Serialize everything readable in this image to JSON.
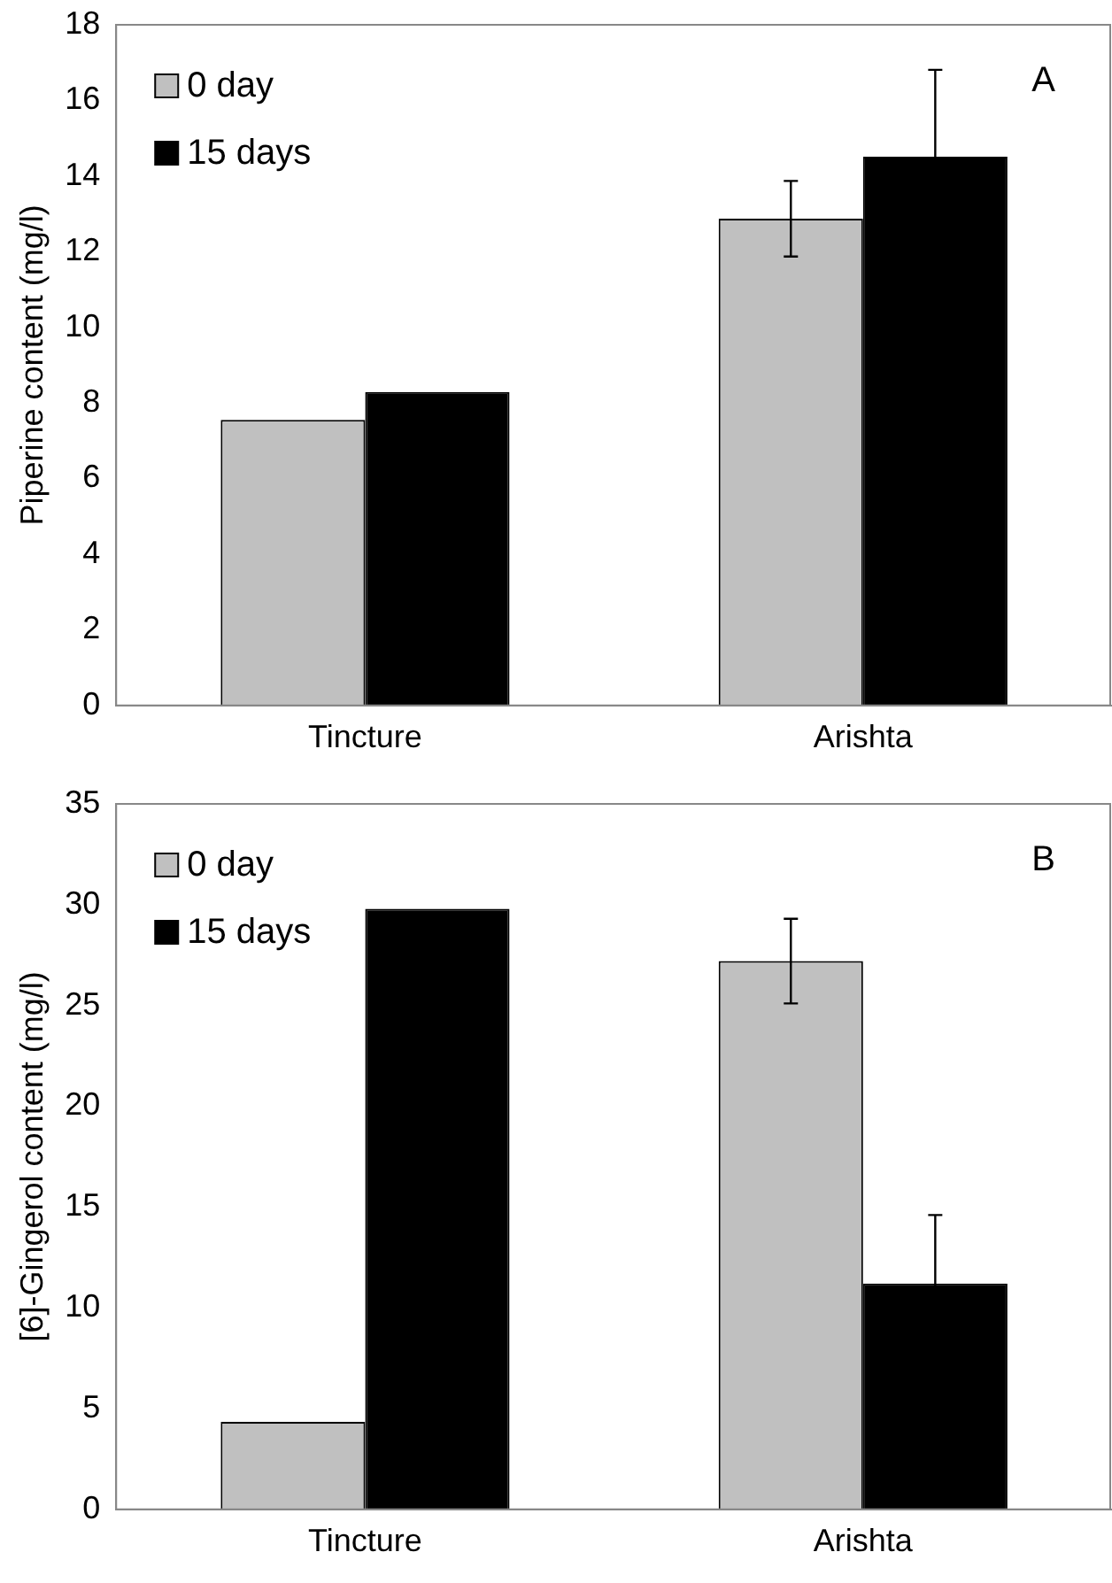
{
  "chart_data": [
    {
      "type": "bar",
      "ylabel": "Piperine content (mg/l)",
      "categories": [
        "Tincture",
        "Arishta"
      ],
      "ylim": [
        0,
        18
      ],
      "yticks": [
        0,
        2,
        4,
        6,
        8,
        10,
        12,
        14,
        16,
        18
      ],
      "legend": "top left",
      "grid": false,
      "annotations": [
        "A"
      ],
      "series": [
        {
          "name": "0 day",
          "color": "#c0c0c0",
          "values": [
            7.55,
            12.87
          ],
          "errors": [
            null,
            1.0
          ]
        },
        {
          "name": "15 days",
          "color": "#000000",
          "values": [
            8.29,
            14.51
          ],
          "errors": [
            null,
            2.3
          ]
        }
      ]
    },
    {
      "type": "bar",
      "ylabel": "[6]-Gingerol content (mg/l)",
      "categories": [
        "Tincture",
        "Arishta"
      ],
      "ylim": [
        0,
        35
      ],
      "yticks": [
        0,
        5,
        10,
        15,
        20,
        25,
        30,
        35
      ],
      "legend": "top left",
      "grid": false,
      "annotations": [
        "B"
      ],
      "series": [
        {
          "name": "0 day",
          "color": "#c0c0c0",
          "values": [
            4.34,
            27.2
          ],
          "errors": [
            null,
            2.1
          ]
        },
        {
          "name": "15 days",
          "color": "#000000",
          "values": [
            29.8,
            11.2
          ],
          "errors": [
            null,
            3.4
          ]
        }
      ]
    }
  ]
}
